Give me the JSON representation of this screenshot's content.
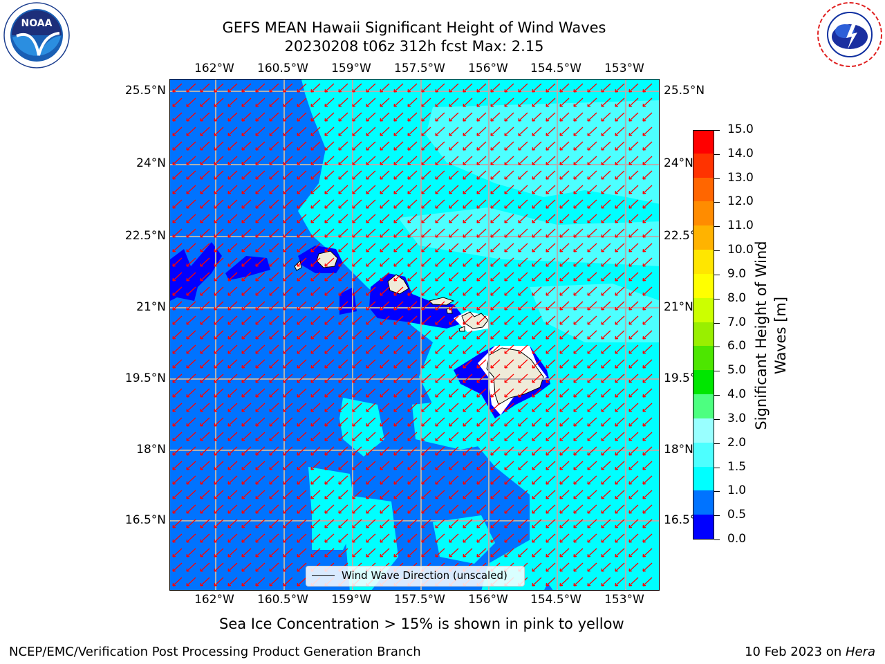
{
  "header": {
    "title_line1": "GEFS MEAN Hawaii Significant Height of Wind Waves",
    "title_line2": "20230208 t06z 312h fcst   Max: 2.15"
  },
  "map": {
    "lon_ticks": [
      "162°W",
      "160.5°W",
      "159°W",
      "157.5°W",
      "156°W",
      "154.5°W",
      "153°W"
    ],
    "lat_ticks": [
      "25.5°N",
      "24°N",
      "22.5°N",
      "21°N",
      "19.5°N",
      "18°N",
      "16.5°N"
    ],
    "colors": {
      "blue": "#0000ff",
      "mid_blue": "#0073ff",
      "cyan": "#00ffff",
      "light_cyan": "#4dffff",
      "pale_cyan": "#99ffff",
      "arrow": "#ff0000",
      "land": "#efebd9",
      "grid": "#b0b0b0"
    },
    "arrow_direction": "toward south-west",
    "legend_label": "Wind Wave Direction (unscaled)"
  },
  "colorbar": {
    "title": "Significant Height of Wind Waves [m]",
    "labels": [
      "15.0",
      "14.0",
      "13.0",
      "12.0",
      "11.0",
      "10.0",
      "9.0",
      "8.0",
      "7.0",
      "6.0",
      "5.0",
      "4.0",
      "3.0",
      "2.0",
      "1.5",
      "1.0",
      "0.5",
      "0.0"
    ],
    "colors_bottom_to_top": [
      "#0000ff",
      "#0073ff",
      "#00ffff",
      "#4dffff",
      "#99ffff",
      "#4dff80",
      "#00e600",
      "#4de600",
      "#99ef00",
      "#ccff00",
      "#ffff00",
      "#ffe600",
      "#ffb300",
      "#ff8c00",
      "#ff6600",
      "#ff3300",
      "#ff0000"
    ]
  },
  "notes": {
    "sea_ice": "Sea Ice Concentration > 15% is shown in pink to yellow"
  },
  "footer": {
    "left": "NCEP/EMC/Verification Post Processing Product Generation Branch",
    "right_date": "10 Feb 2023 on ",
    "right_host": "Hera"
  },
  "logos": {
    "noaa_text": "NOAA",
    "noaa_ring": "NATIONAL OCEANIC AND ATMOSPHERIC ADMINISTRATION · U.S. DEPARTMENT OF COMMERCE",
    "nws_ring": "NATIONAL WEATHER SERVICE"
  }
}
